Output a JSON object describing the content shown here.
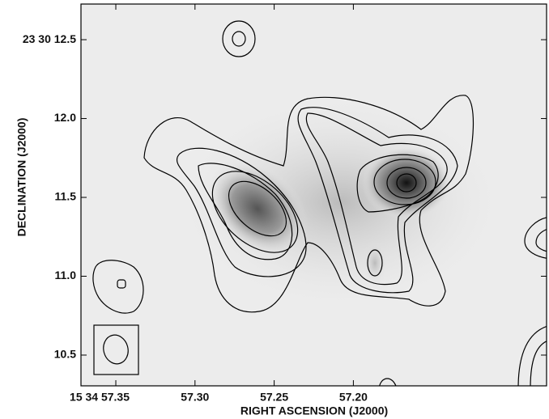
{
  "chart_data": {
    "type": "contour",
    "xlabel": "RIGHT ASCENSION (J2000)",
    "ylabel": "DECLINATION (J2000)",
    "xlim": [
      57.372,
      57.078
    ],
    "ylim": [
      10.305,
      12.726
    ],
    "xticks": [
      {
        "value": 57.35,
        "label": "15 34 57.35"
      },
      {
        "value": 57.3,
        "label": "57.30"
      },
      {
        "value": 57.25,
        "label": "57.25"
      },
      {
        "value": 57.2,
        "label": "57.20"
      }
    ],
    "yticks": [
      {
        "value": 12.5,
        "label": "23 30 12.5"
      },
      {
        "value": 12.0,
        "label": "12.0"
      },
      11.5,
      {
        "value": 11.0,
        "label": "11.0"
      },
      10.5
    ]
  }
}
